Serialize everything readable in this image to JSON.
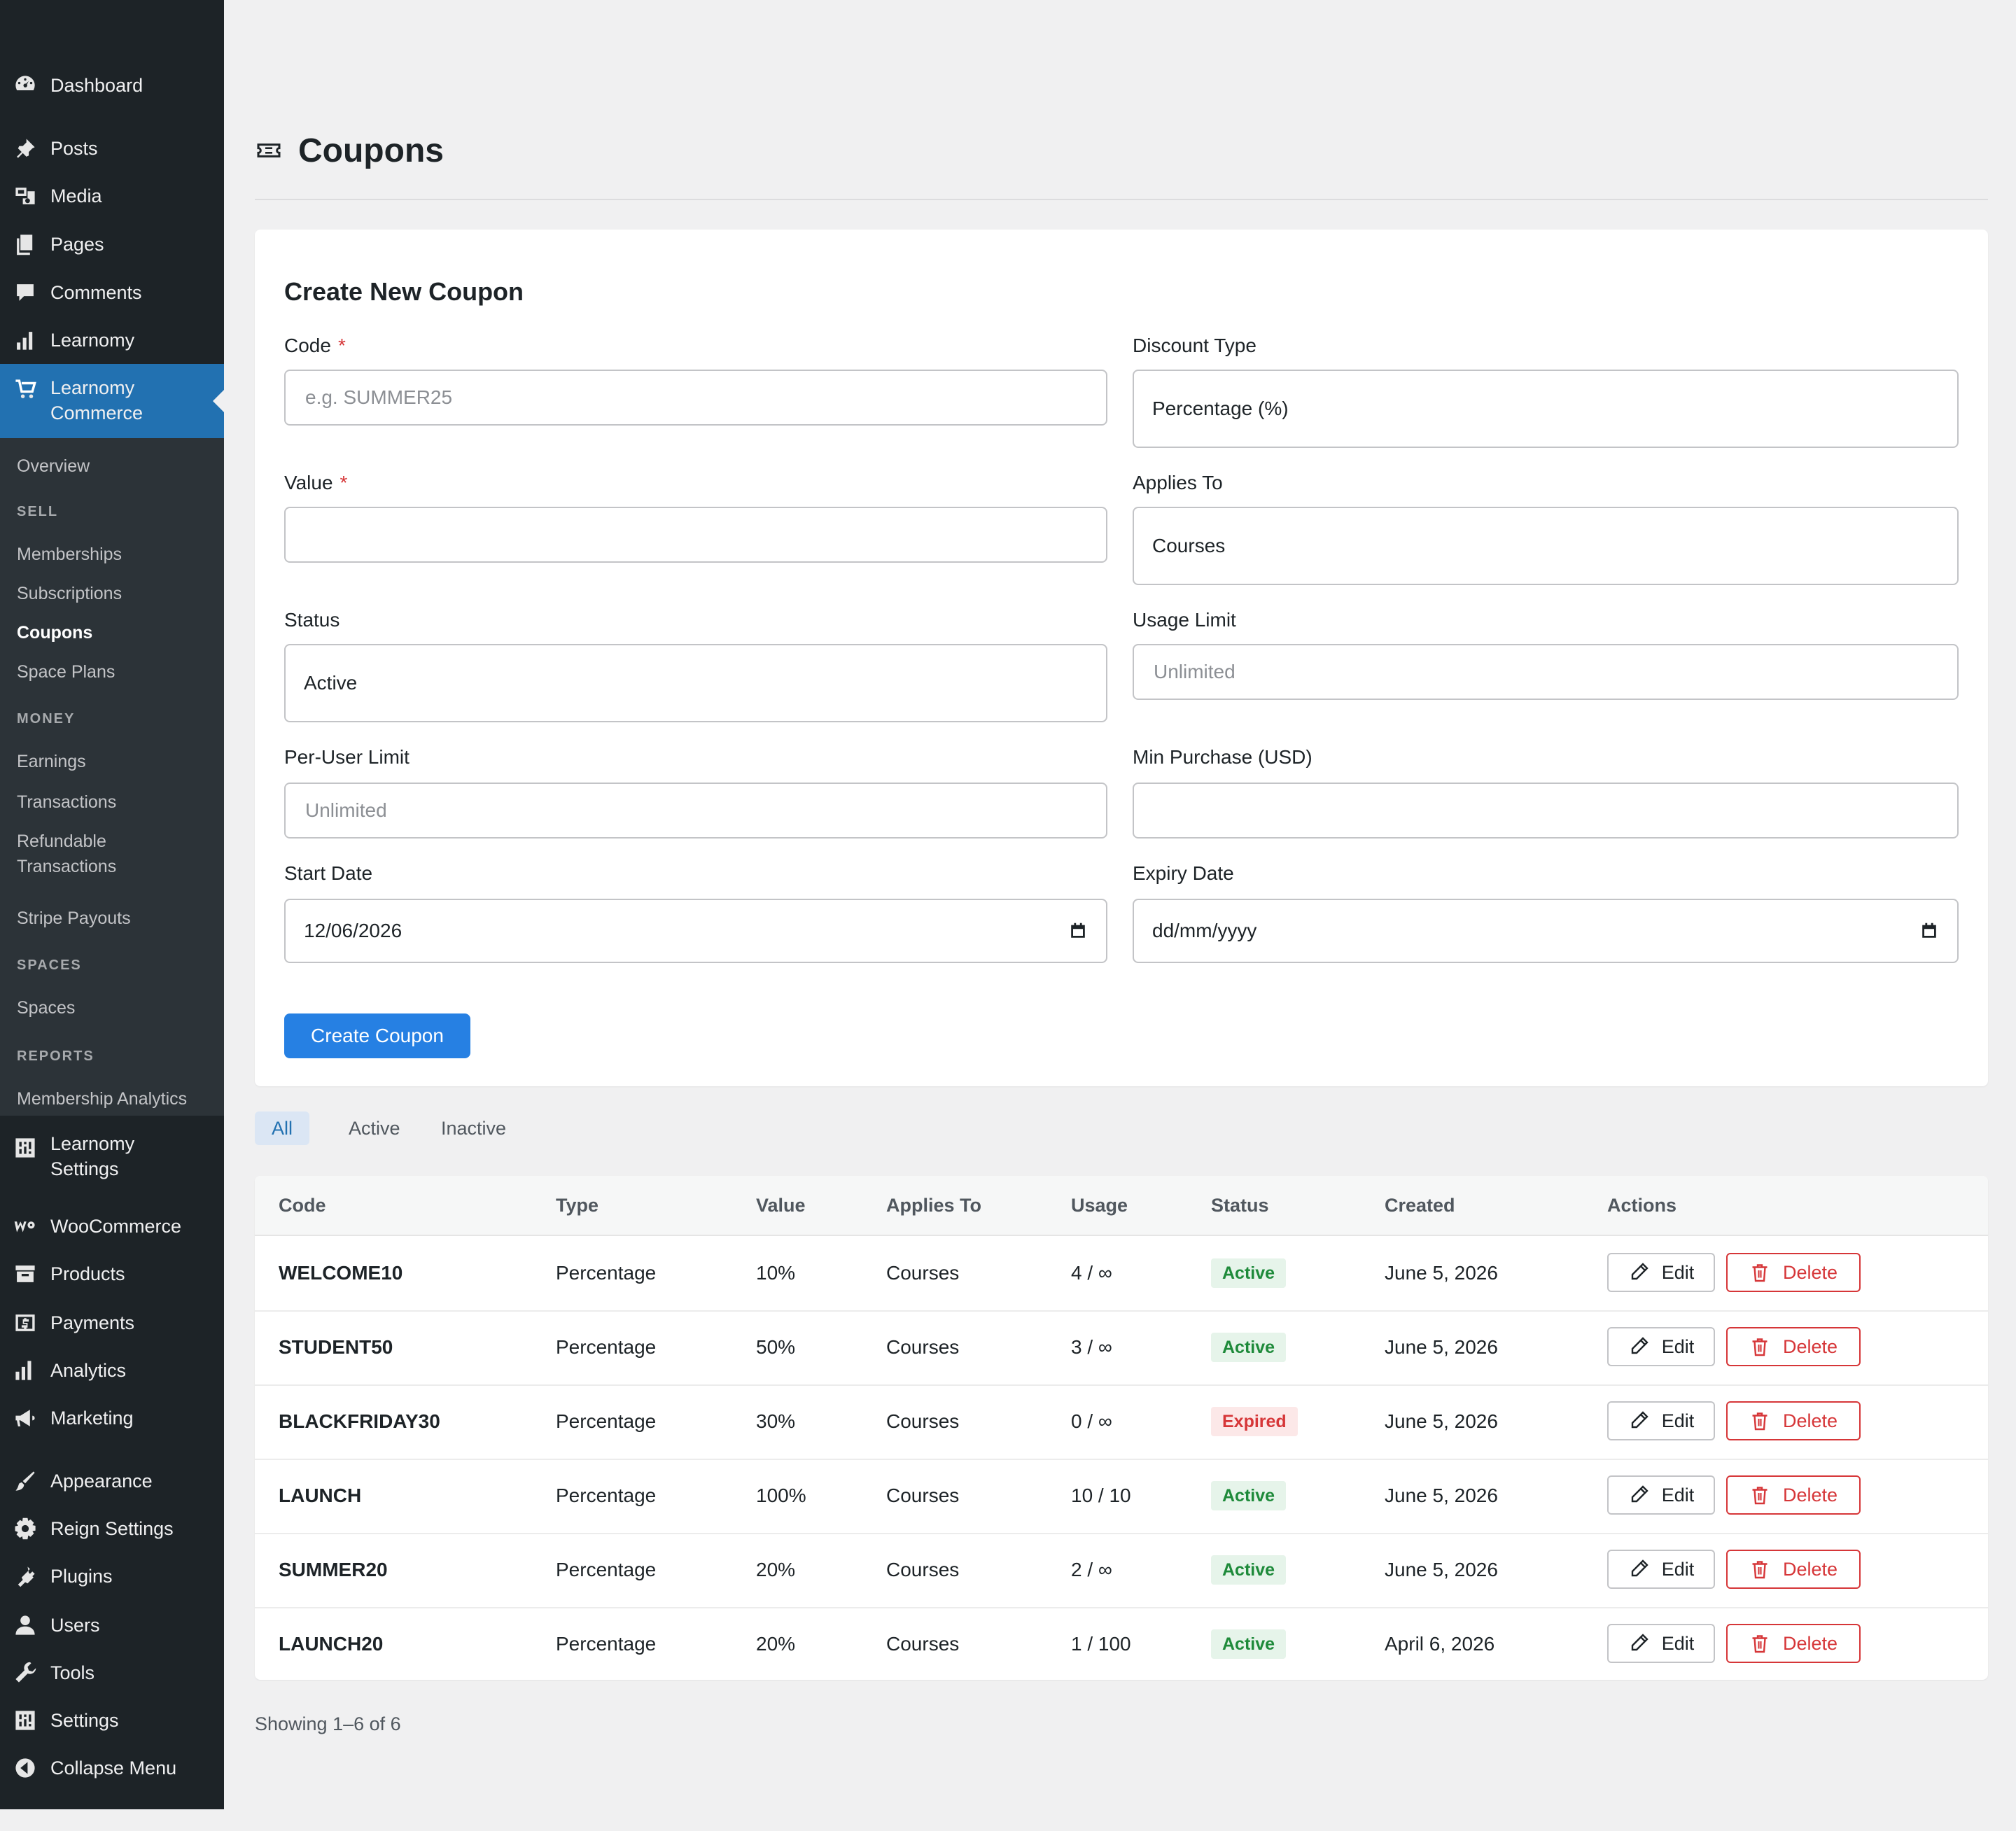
{
  "sidebar": {
    "menu": {
      "dashboard": "Dashboard",
      "posts": "Posts",
      "media": "Media",
      "pages": "Pages",
      "comments": "Comments",
      "learnomy": "Learnomy",
      "commerce": "Learnomy Commerce",
      "learnomy_settings": "Learnomy Settings",
      "woocommerce": "WooCommerce",
      "products": "Products",
      "payments": "Payments",
      "analytics": "Analytics",
      "marketing": "Marketing",
      "appearance": "Appearance",
      "reign_settings": "Reign Settings",
      "plugins": "Plugins",
      "users": "Users",
      "tools": "Tools",
      "settings": "Settings",
      "collapse": "Collapse Menu"
    },
    "submenu": {
      "overview": "Overview",
      "sell_heading": "SELL",
      "memberships": "Memberships",
      "subscriptions": "Subscriptions",
      "coupons": "Coupons",
      "space_plans": "Space Plans",
      "money_heading": "MONEY",
      "earnings": "Earnings",
      "transactions": "Transactions",
      "refundable": "Refundable Transactions",
      "stripe_payouts": "Stripe Payouts",
      "spaces_heading": "SPACES",
      "spaces": "Spaces",
      "reports_heading": "REPORTS",
      "membership_analytics": "Membership Analytics"
    }
  },
  "page": {
    "title": "Coupons"
  },
  "form": {
    "heading": "Create New Coupon",
    "code_label": "Code",
    "code_placeholder": "e.g. SUMMER25",
    "required_mark": "*",
    "discount_type_label": "Discount Type",
    "discount_type_value": "Percentage (%)",
    "value_label": "Value",
    "applies_to_label": "Applies To",
    "applies_to_value": "Courses",
    "status_label": "Status",
    "status_value": "Active",
    "usage_limit_label": "Usage Limit",
    "usage_limit_placeholder": "Unlimited",
    "per_user_label": "Per-User Limit",
    "per_user_placeholder": "Unlimited",
    "min_purchase_label": "Min Purchase (USD)",
    "start_date_label": "Start Date",
    "start_date_value": "12/06/2026",
    "expiry_date_label": "Expiry Date",
    "expiry_date_value": "dd/mm/yyyy",
    "submit_label": "Create Coupon"
  },
  "filters": {
    "all": "All",
    "active": "Active",
    "inactive": "Inactive"
  },
  "table": {
    "columns": [
      "Code",
      "Type",
      "Value",
      "Applies To",
      "Usage",
      "Status",
      "Created",
      "Actions"
    ],
    "edit_label": "Edit",
    "delete_label": "Delete",
    "rows": [
      {
        "code": "WELCOME10",
        "type": "Percentage",
        "value": "10%",
        "applies": "Courses",
        "usage": "4 / ∞",
        "status": "Active",
        "created": "June 5, 2026"
      },
      {
        "code": "STUDENT50",
        "type": "Percentage",
        "value": "50%",
        "applies": "Courses",
        "usage": "3 / ∞",
        "status": "Active",
        "created": "June 5, 2026"
      },
      {
        "code": "BLACKFRIDAY30",
        "type": "Percentage",
        "value": "30%",
        "applies": "Courses",
        "usage": "0 / ∞",
        "status": "Expired",
        "created": "June 5, 2026"
      },
      {
        "code": "LAUNCH",
        "type": "Percentage",
        "value": "100%",
        "applies": "Courses",
        "usage": "10 / 10",
        "status": "Active",
        "created": "June 5, 2026"
      },
      {
        "code": "SUMMER20",
        "type": "Percentage",
        "value": "20%",
        "applies": "Courses",
        "usage": "2 / ∞",
        "status": "Active",
        "created": "June 5, 2026"
      },
      {
        "code": "LAUNCH20",
        "type": "Percentage",
        "value": "20%",
        "applies": "Courses",
        "usage": "1 / 100",
        "status": "Active",
        "created": "April 6, 2026"
      }
    ]
  },
  "pager": {
    "text": "Showing 1–6 of 6"
  }
}
